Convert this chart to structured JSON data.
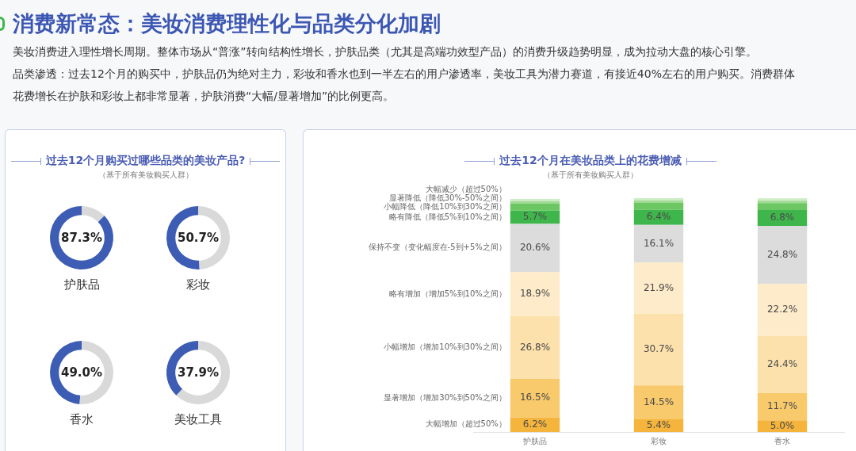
{
  "chart_data": [
    {
      "type": "other",
      "title": "消费新常态：美妆消费理性化与品类分化加剧",
      "annotations": [
        "美妆消费进入理性增长周期。整体市场从“普涨”转向结构性增长，护肤品类（尤其是高端功效型产品）的消费升级趋势明显，成为拉动大盘的核心引擎。",
        "品类渗透：过去12个月的购买中，护肤品仍为绝对主力，彩妆和香水也到一半左右的用户渗透率，美妆工具为潜力赛道，有接近40%左右的用户购买。消费群体",
        "花费增长在护肤和彩妆上都非常显著，护肤消费“大幅/显著增加”的比例更高。"
      ]
    },
    {
      "type": "other",
      "title": "过去12个月购买过哪些品类的美妆产品?",
      "subtitle": "（基于所有美妆购买人群）"
    },
    {
      "type": "donut",
      "title": "护肤品",
      "categories": [
        null,
        null
      ],
      "values": [
        87.3,
        12.7
      ],
      "colors": [
        "#3d5cb4",
        "#d9d9d9"
      ],
      "value_labels": [
        "87.3%",
        null
      ]
    },
    {
      "type": "donut",
      "title": "彩妆",
      "categories": [
        null,
        null
      ],
      "values": [
        50.7,
        49.3
      ],
      "colors": [
        "#3d5cb4",
        "#d9d9d9"
      ],
      "value_labels": [
        "50.7%",
        null
      ]
    },
    {
      "type": "donut",
      "title": "香水",
      "categories": [
        null,
        null
      ],
      "values": [
        49.0,
        51.0
      ],
      "colors": [
        "#3d5cb4",
        "#d9d9d9"
      ],
      "value_labels": [
        "49.0%",
        null
      ]
    },
    {
      "type": "donut",
      "title": "美妆工具",
      "categories": [
        null,
        null
      ],
      "values": [
        37.9,
        62.1
      ],
      "colors": [
        "#3d5cb4",
        "#d9d9d9"
      ],
      "value_labels": [
        "37.9%",
        null
      ]
    },
    {
      "type": "bar",
      "title": "过去12个月在美妆品类上的花费增减",
      "subtitle": "（基于所有美妆购买人群）",
      "categories": [
        "护肤品",
        "彩妆",
        "香水"
      ],
      "stacked": true,
      "ylim": [
        0,
        100
      ],
      "tick_labels": "x",
      "series": [
        {
          "name": "大幅增加（超过50%）",
          "color": "#f5b53c",
          "values": [
            6.2,
            5.4,
            5.0
          ],
          "value_labels": [
            "6.2%",
            "5.4%",
            "5.0%"
          ]
        },
        {
          "name": "显著增加（增加30%到50%之间）",
          "color": "#f8ca6c",
          "values": [
            16.5,
            14.5,
            11.7
          ],
          "value_labels": [
            "16.5%",
            "14.5%",
            "11.7%"
          ]
        },
        {
          "name": "小幅增加（增加10%到30%之间）",
          "color": "#fce1ac",
          "values": [
            26.8,
            30.7,
            24.4
          ],
          "value_labels": [
            "26.8%",
            "30.7%",
            "24.4%"
          ]
        },
        {
          "name": "略有增加（增加5%到10%之间）",
          "color": "#fdebc9",
          "values": [
            18.9,
            21.9,
            22.2
          ],
          "value_labels": [
            "18.9%",
            "21.9%",
            "22.2%"
          ]
        },
        {
          "name": "保持不变（变化幅度在-5到+5%之间）",
          "color": "#dcdcdc",
          "values": [
            20.6,
            16.1,
            24.8
          ],
          "value_labels": [
            "20.6%",
            "16.1%",
            "24.8%"
          ]
        },
        {
          "name": "略有降低（降低5%到10%之间）",
          "color": "#3fb64b",
          "values": [
            5.7,
            6.4,
            6.8
          ],
          "value_labels": [
            "5.7%",
            "6.4%",
            "6.8%"
          ]
        },
        {
          "name": "小幅降低（降低10%到30%之间）",
          "color": "#6cc762",
          "values": [
            3,
            3,
            3
          ]
        },
        {
          "name": "显著降低（降低30%-50%之间）",
          "color": "#9fd993",
          "values": [
            1,
            1,
            1
          ]
        },
        {
          "name": "大幅减少（超过50%）",
          "color": "#cdedc4",
          "values": [
            1,
            1,
            1
          ]
        }
      ]
    }
  ]
}
